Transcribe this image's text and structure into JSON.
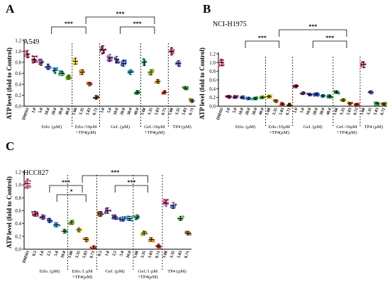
{
  "figure": {
    "panels": [
      "A",
      "B",
      "C"
    ]
  },
  "chart_data": [
    {
      "panel": "A",
      "type": "scatter",
      "title": "A549",
      "ylabel": "ATP level (fold to Control)",
      "ylim": [
        0,
        1.2
      ],
      "yticks": [
        "0.0",
        "0.2",
        "0.4",
        "0.6",
        "0.8",
        "1.0",
        "1.2"
      ],
      "categories": [
        "DMSO",
        "1.0",
        "5.0",
        "10.0",
        "20.0",
        "30.0",
        "40.0",
        "1.68",
        "3.35",
        "5.03",
        "6.71",
        "1.0",
        "5.0",
        "10.0",
        "20.0",
        "30.0",
        "40.0",
        "1.68",
        "3.35",
        "5.03",
        "6.71",
        "1.68",
        "3.35",
        "5.03",
        "6.71"
      ],
      "values": [
        0.95,
        0.85,
        0.8,
        0.72,
        0.65,
        0.6,
        0.53,
        0.82,
        0.62,
        0.4,
        0.16,
        1.03,
        0.88,
        0.85,
        0.78,
        0.62,
        0.25,
        0.8,
        0.62,
        0.45,
        0.25,
        1.0,
        0.78,
        0.33,
        0.1
      ],
      "colors": [
        "#e0508a",
        "#a0205a",
        "#8a3fa8",
        "#4466d8",
        "#2aa0d8",
        "#20b070",
        "#7ac020",
        "#e8d020",
        "#e89020",
        "#e85030",
        "#8a5020",
        "#a02050",
        "#8a3fa8",
        "#5a3ab0",
        "#2a5ad8",
        "#20a0c8",
        "#20a050",
        "#20a050",
        "#a0c020",
        "#e09020",
        "#e03020",
        "#d04080",
        "#7070c8",
        "#40b040",
        "#a08030"
      ],
      "groups": [
        {
          "label": "Erlo. (µM)",
          "from": 1,
          "to": 6
        },
        {
          "label": "Erlo./10µM",
          "label2": "+TP4(µM)",
          "from": 7,
          "to": 10
        },
        {
          "label": "Gef. (µM)",
          "from": 11,
          "to": 16
        },
        {
          "label": "Gef./10µM",
          "label2": "+TP4(µM)",
          "from": 17,
          "to": 20
        },
        {
          "label": "TP4 (µM)",
          "from": 21,
          "to": 24
        }
      ],
      "significance": [
        "***",
        "***",
        "***"
      ]
    },
    {
      "panel": "B",
      "type": "scatter",
      "title": "NCI-H1975",
      "ylabel": "ATP level (fold to Control)",
      "ylim": [
        0,
        1.2
      ],
      "yticks": [
        "0.0",
        "0.2",
        "0.4",
        "0.6",
        "0.8",
        "1.0",
        "1.2"
      ],
      "categories": [
        "DMSO",
        "1.0",
        "5.0",
        "10.0",
        "20.0",
        "30.0",
        "40.0",
        "1.68",
        "3.35",
        "5.03",
        "6.71",
        "1.0",
        "5.0",
        "10.0",
        "20.0",
        "30.0",
        "40.0",
        "1.68",
        "3.35",
        "5.03",
        "6.71",
        "1.68",
        "3.35",
        "5.03",
        "6.71"
      ],
      "values": [
        1.0,
        0.22,
        0.21,
        0.2,
        0.18,
        0.18,
        0.2,
        0.22,
        0.12,
        0.05,
        0.03,
        0.45,
        0.3,
        0.27,
        0.27,
        0.24,
        0.22,
        0.32,
        0.14,
        0.06,
        0.03,
        0.95,
        0.32,
        0.06,
        0.05
      ],
      "colors": [
        "#e0508a",
        "#a0205a",
        "#8a3fa8",
        "#4466d8",
        "#2aa0d8",
        "#20b070",
        "#7ac020",
        "#e8d020",
        "#e89020",
        "#e85030",
        "#8a5020",
        "#a02050",
        "#8a3fa8",
        "#5a3ab0",
        "#2a5ad8",
        "#20a0c8",
        "#20a050",
        "#20a050",
        "#a0c020",
        "#e09020",
        "#e03020",
        "#d04080",
        "#7070c8",
        "#40b040",
        "#a08030"
      ],
      "groups": [
        {
          "label": "Erlo. (µM)",
          "from": 1,
          "to": 6
        },
        {
          "label": "Erlo./10µM",
          "label2": "+TP4(µM)",
          "from": 7,
          "to": 10
        },
        {
          "label": "Gef. (µM)",
          "from": 11,
          "to": 16
        },
        {
          "label": "Gef./10µM",
          "label2": "+TP4(µM)",
          "from": 17,
          "to": 20
        },
        {
          "label": "TP4 (µM)",
          "from": 21,
          "to": 24
        }
      ],
      "significance": [
        "***",
        "***",
        "***"
      ]
    },
    {
      "panel": "C",
      "type": "scatter",
      "title": "HCC827",
      "ylabel": "ATP level (fold to Control)",
      "ylim": [
        0,
        1.2
      ],
      "yticks": [
        "0.0",
        "0.2",
        "0.4",
        "0.6",
        "0.8",
        "1.0",
        "1.2"
      ],
      "categories": [
        "DMSO",
        "0.5",
        "1.0",
        "2.5",
        "5.0",
        "10.0",
        "1.68",
        "3.35",
        "5.03",
        "6.71",
        "0.5",
        "1.0",
        "2.5",
        "5.0",
        "10.0",
        "1.68",
        "3.35",
        "5.03",
        "6.71",
        "1.68",
        "3.35",
        "5.03",
        "6.71"
      ],
      "values": [
        1.02,
        0.55,
        0.5,
        0.45,
        0.38,
        0.28,
        0.42,
        0.3,
        0.15,
        0.02,
        0.55,
        0.6,
        0.5,
        0.47,
        0.48,
        0.5,
        0.25,
        0.15,
        0.05,
        0.72,
        0.68,
        0.48,
        0.25
      ],
      "colors": [
        "#e0508a",
        "#a0205a",
        "#8a3fa8",
        "#4466d8",
        "#2aa0d8",
        "#20b070",
        "#7ac020",
        "#e8d020",
        "#e89020",
        "#e85030",
        "#8a5020",
        "#8a3fa8",
        "#5a3ab0",
        "#2a5ad8",
        "#20a0c8",
        "#20a050",
        "#a0c020",
        "#e09020",
        "#e03020",
        "#d04080",
        "#7070c8",
        "#40b040",
        "#a08030"
      ],
      "groups": [
        {
          "label": "Erlo. (µM)",
          "from": 1,
          "to": 5
        },
        {
          "label": "Erlo./1 µM",
          "label2": "+TP4(µM)",
          "from": 6,
          "to": 9
        },
        {
          "label": "Gef. (µM)",
          "from": 10,
          "to": 14
        },
        {
          "label": "Gef./1 µM",
          "label2": "+TP4(µM)",
          "from": 15,
          "to": 18
        },
        {
          "label": "TP4 (µM)",
          "from": 19,
          "to": 22
        }
      ],
      "significance": [
        "***",
        "*",
        "***",
        "***"
      ]
    }
  ]
}
